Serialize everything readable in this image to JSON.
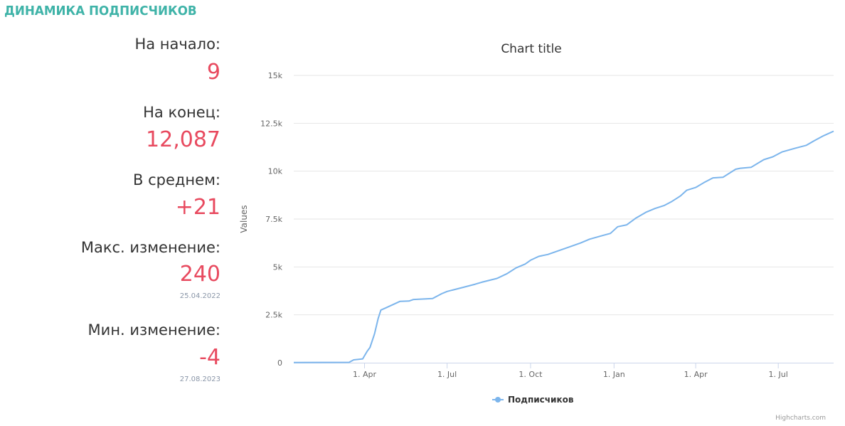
{
  "header": {
    "title": "ДИНАМИКА ПОДПИСЧИКОВ"
  },
  "stats": {
    "start": {
      "label": "На начало:",
      "value": "9"
    },
    "end": {
      "label": "На конец:",
      "value": "12,087"
    },
    "average": {
      "label": "В среднем:",
      "value": "+21"
    },
    "max": {
      "label": "Макс. изменение:",
      "value": "240",
      "date": "25.04.2022"
    },
    "min": {
      "label": "Мин. изменение:",
      "value": "-4",
      "date": "27.08.2023"
    }
  },
  "colors": {
    "accent": "#3fb3a8",
    "value": "#e84a5f",
    "series": "#7cb5ec"
  },
  "chart_data": {
    "type": "line",
    "title": "Chart title",
    "ylabel": "Values",
    "xlabel": "",
    "ylim": [
      0,
      15000
    ],
    "grid": true,
    "legend_position": "bottom-center",
    "credits": "Highcharts.com",
    "y_ticks": [
      {
        "value": 0,
        "label": "0"
      },
      {
        "value": 2500,
        "label": "2.5k"
      },
      {
        "value": 5000,
        "label": "5k"
      },
      {
        "value": 7500,
        "label": "7.5k"
      },
      {
        "value": 10000,
        "label": "10k"
      },
      {
        "value": 12500,
        "label": "12.5k"
      },
      {
        "value": 15000,
        "label": "15k"
      }
    ],
    "x_range": [
      "2022-01-13",
      "2023-08-31"
    ],
    "x_ticks": [
      {
        "date": "2022-04-01",
        "label": "1. Apr"
      },
      {
        "date": "2022-07-01",
        "label": "1. Jul"
      },
      {
        "date": "2022-10-01",
        "label": "1. Oct"
      },
      {
        "date": "2023-01-01",
        "label": "1. Jan"
      },
      {
        "date": "2023-04-01",
        "label": "1. Apr"
      },
      {
        "date": "2023-07-01",
        "label": "1. Jul"
      }
    ],
    "series": [
      {
        "name": "Подписчиков",
        "points": [
          [
            "2022-01-13",
            9
          ],
          [
            "2022-03-15",
            20
          ],
          [
            "2022-03-20",
            150
          ],
          [
            "2022-03-30",
            200
          ],
          [
            "2022-04-04",
            600
          ],
          [
            "2022-04-07",
            800
          ],
          [
            "2022-04-12",
            1500
          ],
          [
            "2022-04-16",
            2300
          ],
          [
            "2022-04-19",
            2750
          ],
          [
            "2022-04-24",
            2850
          ],
          [
            "2022-05-10",
            3200
          ],
          [
            "2022-05-20",
            3220
          ],
          [
            "2022-05-25",
            3300
          ],
          [
            "2022-06-15",
            3350
          ],
          [
            "2022-06-25",
            3600
          ],
          [
            "2022-07-01",
            3720
          ],
          [
            "2022-07-20",
            3950
          ],
          [
            "2022-08-01",
            4100
          ],
          [
            "2022-08-08",
            4200
          ],
          [
            "2022-08-25",
            4400
          ],
          [
            "2022-09-05",
            4650
          ],
          [
            "2022-09-15",
            4950
          ],
          [
            "2022-09-25",
            5150
          ],
          [
            "2022-10-01",
            5350
          ],
          [
            "2022-10-10",
            5550
          ],
          [
            "2022-10-20",
            5650
          ],
          [
            "2022-11-01",
            5850
          ],
          [
            "2022-11-10",
            6000
          ],
          [
            "2022-11-25",
            6250
          ],
          [
            "2022-12-05",
            6450
          ],
          [
            "2022-12-20",
            6650
          ],
          [
            "2022-12-28",
            6750
          ],
          [
            "2023-01-05",
            7100
          ],
          [
            "2023-01-15",
            7200
          ],
          [
            "2023-01-25",
            7550
          ],
          [
            "2023-02-05",
            7850
          ],
          [
            "2023-02-15",
            8050
          ],
          [
            "2023-02-25",
            8200
          ],
          [
            "2023-03-05",
            8400
          ],
          [
            "2023-03-15",
            8700
          ],
          [
            "2023-03-22",
            9000
          ],
          [
            "2023-04-01",
            9150
          ],
          [
            "2023-04-10",
            9400
          ],
          [
            "2023-04-20",
            9650
          ],
          [
            "2023-05-01",
            9680
          ],
          [
            "2023-05-15",
            10100
          ],
          [
            "2023-05-20",
            10150
          ],
          [
            "2023-06-01",
            10200
          ],
          [
            "2023-06-15",
            10600
          ],
          [
            "2023-06-25",
            10750
          ],
          [
            "2023-07-05",
            11000
          ],
          [
            "2023-07-20",
            11200
          ],
          [
            "2023-08-01",
            11350
          ],
          [
            "2023-08-10",
            11600
          ],
          [
            "2023-08-20",
            11850
          ],
          [
            "2023-08-31",
            12087
          ]
        ]
      }
    ]
  }
}
